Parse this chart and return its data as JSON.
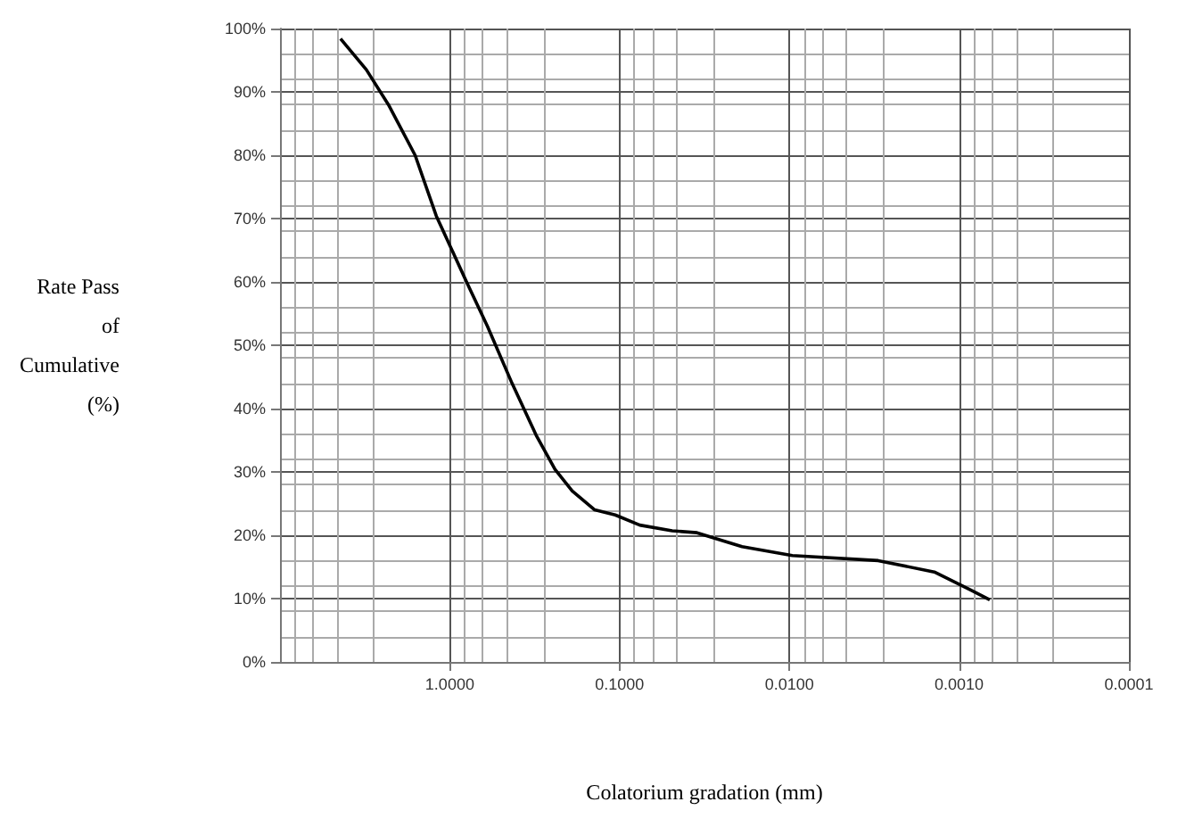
{
  "chart_data": {
    "type": "line",
    "xlabel": "Colatorium gradation (mm)",
    "ylabel": "Rate Pass\nof\nCumulative\n(%)",
    "x": [
      4.4,
      3.1,
      2.3,
      1.6,
      1.2,
      0.79,
      0.6,
      0.43,
      0.31,
      0.24,
      0.19,
      0.14,
      0.106,
      0.076,
      0.049,
      0.035,
      0.019,
      0.0096,
      0.003,
      0.0014,
      0.00086,
      0.00066
    ],
    "series": [
      {
        "color": "#000000",
        "values": [
          98.4,
          93.5,
          88,
          80,
          70.4,
          59.8,
          53,
          44,
          35.8,
          30.4,
          27,
          24,
          23.2,
          21.6,
          20.7,
          20.4,
          18.2,
          16.8,
          16,
          14.2,
          11.4,
          9.8
        ]
      }
    ],
    "log": "x",
    "xlim": [
      10,
      0.0001
    ],
    "xticks": [
      {
        "value": 1,
        "label": "1.0000"
      },
      {
        "value": 0.1,
        "label": "0.1000"
      },
      {
        "value": 0.01,
        "label": "0.0100"
      },
      {
        "value": 0.001,
        "label": "0.0010"
      },
      {
        "value": 0.0001,
        "label": "0.0001"
      }
    ],
    "ylim": [
      0,
      100
    ],
    "yticks": [
      {
        "value": 0,
        "label": "0%"
      },
      {
        "value": 10,
        "label": "10%"
      },
      {
        "value": 20,
        "label": "20%"
      },
      {
        "value": 30,
        "label": "30%"
      },
      {
        "value": 40,
        "label": "40%"
      },
      {
        "value": 50,
        "label": "50%"
      },
      {
        "value": 60,
        "label": "60%"
      },
      {
        "value": 70,
        "label": "70%"
      },
      {
        "value": 80,
        "label": "80%"
      },
      {
        "value": 90,
        "label": "90%"
      },
      {
        "value": 100,
        "label": "100%"
      }
    ],
    "grid": true,
    "marker": "none",
    "line_style": "solid"
  }
}
